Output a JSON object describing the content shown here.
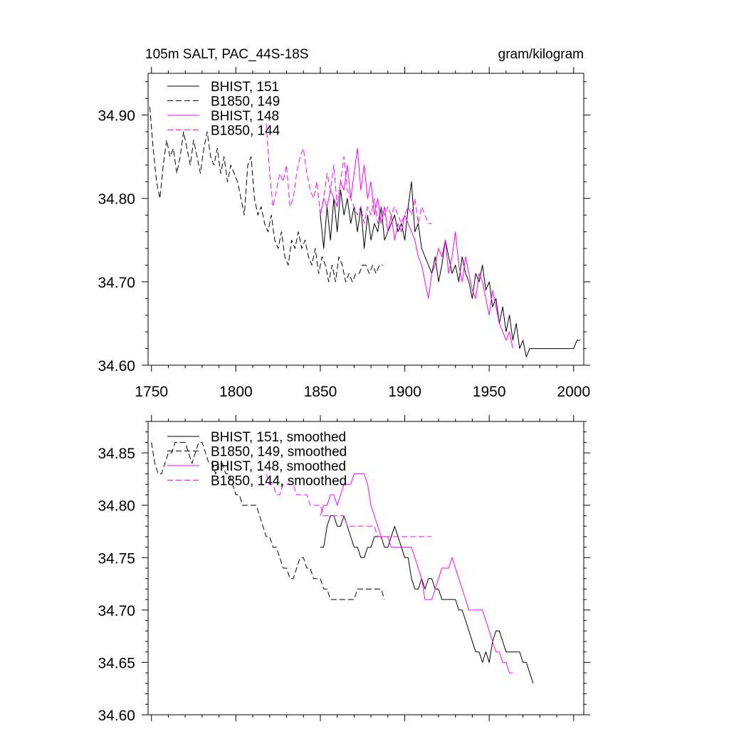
{
  "chart_data": [
    {
      "type": "line",
      "title": "105m SALT, PAC_44S-18S",
      "units": "gram/kilogram",
      "xlim": [
        1748,
        2006
      ],
      "ylim": [
        34.6,
        34.95
      ],
      "x_ticks": [
        1750,
        1800,
        1850,
        1900,
        1950,
        2000
      ],
      "x_tick_labels": [
        "1750",
        "1800",
        "1850",
        "1900",
        "1950",
        "2000"
      ],
      "y_ticks": [
        34.6,
        34.7,
        34.8,
        34.9
      ],
      "y_tick_labels": [
        "34.60",
        "34.70",
        "34.80",
        "34.90"
      ],
      "legend_position": "top-left",
      "series": [
        {
          "name": "BHIST, 151",
          "color": "#000000",
          "dash": "solid",
          "x_start": 1850,
          "x_step": 2,
          "values": [
            34.78,
            34.74,
            34.79,
            34.75,
            34.8,
            34.76,
            34.81,
            34.78,
            34.8,
            34.77,
            34.79,
            34.76,
            34.79,
            34.74,
            34.78,
            34.75,
            34.77,
            34.76,
            34.79,
            34.75,
            34.76,
            34.77,
            34.78,
            34.76,
            34.77,
            34.75,
            34.79,
            34.82,
            34.76,
            34.77,
            34.74,
            34.73,
            34.72,
            34.71,
            34.73,
            34.7,
            34.72,
            34.75,
            34.73,
            34.71,
            34.72,
            34.7,
            34.73,
            34.71,
            34.7,
            34.68,
            34.71,
            34.7,
            34.72,
            34.69,
            34.7,
            34.67,
            34.68,
            34.65,
            34.67,
            34.64,
            34.66,
            34.63,
            34.65,
            34.62,
            34.63,
            34.61,
            34.62,
            34.62,
            34.62,
            34.62,
            34.62,
            34.62,
            34.62,
            34.62,
            34.62,
            34.62,
            34.62,
            34.62,
            34.62,
            34.62,
            34.63,
            34.63
          ]
        },
        {
          "name": "B1850, 149",
          "color": "#000000",
          "dash": "8,4",
          "x_start": 1749,
          "x_step": 2,
          "values": [
            34.91,
            34.86,
            34.82,
            34.8,
            34.84,
            34.87,
            34.85,
            34.86,
            34.83,
            34.85,
            34.88,
            34.86,
            34.84,
            34.87,
            34.85,
            34.83,
            34.86,
            34.88,
            34.85,
            34.84,
            34.86,
            34.83,
            34.85,
            34.82,
            34.84,
            34.83,
            34.82,
            34.8,
            34.78,
            34.84,
            34.85,
            34.8,
            34.78,
            34.79,
            34.77,
            34.76,
            34.78,
            34.75,
            34.74,
            34.76,
            34.73,
            34.72,
            34.75,
            34.74,
            34.76,
            34.74,
            34.75,
            34.73,
            34.72,
            34.74,
            34.71,
            34.73,
            34.72,
            34.7,
            34.72,
            34.7,
            34.73,
            34.72,
            34.7,
            34.71,
            34.7,
            34.71,
            34.71,
            34.72,
            34.72,
            34.71,
            34.72,
            34.71,
            34.72,
            34.72
          ]
        },
        {
          "name": "BHIST, 148",
          "color": "#ff00ff",
          "dash": "solid",
          "x_start": 1850,
          "x_step": 2,
          "values": [
            34.78,
            34.8,
            34.79,
            34.81,
            34.8,
            34.79,
            34.82,
            34.81,
            34.84,
            34.8,
            34.83,
            34.86,
            34.81,
            34.84,
            34.8,
            34.82,
            34.78,
            34.8,
            34.77,
            34.79,
            34.76,
            34.78,
            34.75,
            34.77,
            34.76,
            34.78,
            34.77,
            34.76,
            34.75,
            34.73,
            34.72,
            34.7,
            34.68,
            34.71,
            34.72,
            34.74,
            34.73,
            34.75,
            34.71,
            34.73,
            34.76,
            34.72,
            34.7,
            34.73,
            34.71,
            34.69,
            34.68,
            34.71,
            34.7,
            34.68,
            34.66,
            34.69,
            34.67,
            34.65,
            34.64,
            34.63,
            34.64,
            34.62
          ]
        },
        {
          "name": "B1850, 144",
          "color": "#ff00ff",
          "dash": "8,4",
          "x_start": 1818,
          "x_step": 2,
          "values": [
            34.89,
            34.83,
            34.79,
            34.81,
            34.83,
            34.82,
            34.84,
            34.79,
            34.8,
            34.83,
            34.85,
            34.86,
            34.83,
            34.81,
            34.8,
            34.82,
            34.78,
            34.8,
            34.83,
            34.81,
            34.84,
            34.79,
            34.82,
            34.85,
            34.81,
            34.8,
            34.79,
            34.78,
            34.79,
            34.77,
            34.79,
            34.78,
            34.8,
            34.77,
            34.79,
            34.78,
            34.79,
            34.78,
            34.79,
            34.78,
            34.77,
            34.78,
            34.79,
            34.78,
            34.8,
            34.77,
            34.79,
            34.78,
            34.77,
            34.77
          ]
        }
      ]
    },
    {
      "type": "line",
      "title": "",
      "xlim": [
        1748,
        2006
      ],
      "ylim": [
        34.6,
        34.88
      ],
      "y_ticks": [
        34.6,
        34.65,
        34.7,
        34.75,
        34.8,
        34.85
      ],
      "y_tick_labels": [
        "34.60",
        "34.65",
        "34.70",
        "34.75",
        "34.80",
        "34.85"
      ],
      "legend_position": "top-left",
      "series": [
        {
          "name": "BHIST, 151, smoothed",
          "color": "#000000",
          "dash": "solid",
          "x_start": 1850,
          "x_step": 2,
          "values": [
            34.76,
            34.76,
            34.78,
            34.79,
            34.79,
            34.78,
            34.78,
            34.79,
            34.78,
            34.77,
            34.76,
            34.76,
            34.75,
            34.75,
            34.76,
            34.76,
            34.77,
            34.77,
            34.77,
            34.76,
            34.76,
            34.77,
            34.78,
            34.77,
            34.76,
            34.75,
            34.75,
            34.73,
            34.72,
            34.72,
            34.73,
            34.72,
            34.73,
            34.73,
            34.72,
            34.72,
            34.71,
            34.71,
            34.71,
            34.71,
            34.71,
            34.7,
            34.7,
            34.69,
            34.68,
            34.67,
            34.66,
            34.66,
            34.65,
            34.66,
            34.65,
            34.67,
            34.68,
            34.68,
            34.67,
            34.66,
            34.66,
            34.66,
            34.66,
            34.66,
            34.65,
            34.65,
            34.64,
            34.63
          ]
        },
        {
          "name": "B1850, 149, smoothed",
          "color": "#000000",
          "dash": "8,4",
          "x_start": 1750,
          "x_step": 2,
          "values": [
            34.86,
            34.84,
            34.83,
            34.83,
            34.84,
            34.85,
            34.85,
            34.86,
            34.86,
            34.86,
            34.86,
            34.85,
            34.84,
            34.85,
            34.86,
            34.86,
            34.85,
            34.84,
            34.84,
            34.83,
            34.84,
            34.84,
            34.83,
            34.83,
            34.82,
            34.81,
            34.81,
            34.8,
            34.8,
            34.8,
            34.8,
            34.8,
            34.79,
            34.78,
            34.77,
            34.77,
            34.76,
            34.76,
            34.75,
            34.74,
            34.74,
            34.73,
            34.73,
            34.74,
            34.75,
            34.75,
            34.74,
            34.74,
            34.73,
            34.73,
            34.73,
            34.72,
            34.72,
            34.71,
            34.71,
            34.71,
            34.71,
            34.71,
            34.71,
            34.71,
            34.71,
            34.72,
            34.72,
            34.72,
            34.72,
            34.72,
            34.72,
            34.72,
            34.72,
            34.71
          ]
        },
        {
          "name": "BHIST, 148, smoothed",
          "color": "#ff00ff",
          "dash": "solid",
          "x_start": 1850,
          "x_step": 2,
          "values": [
            34.79,
            34.8,
            34.8,
            34.81,
            34.81,
            34.8,
            34.81,
            34.82,
            34.82,
            34.82,
            34.83,
            34.83,
            34.83,
            34.83,
            34.82,
            34.8,
            34.79,
            34.78,
            34.77,
            34.77,
            34.77,
            34.76,
            34.76,
            34.76,
            34.76,
            34.76,
            34.76,
            34.76,
            34.75,
            34.74,
            34.73,
            34.71,
            34.71,
            34.71,
            34.72,
            34.73,
            34.74,
            34.74,
            34.74,
            34.75,
            34.74,
            34.73,
            34.72,
            34.71,
            34.7,
            34.7,
            34.7,
            34.7,
            34.7,
            34.69,
            34.68,
            34.67,
            34.66,
            34.66,
            34.65,
            34.65,
            34.64,
            34.64
          ]
        },
        {
          "name": "B1850, 144, smoothed",
          "color": "#ff00ff",
          "dash": "8,4",
          "x_start": 1818,
          "x_step": 2,
          "values": [
            34.83,
            34.82,
            34.82,
            34.81,
            34.81,
            34.82,
            34.82,
            34.82,
            34.82,
            34.81,
            34.81,
            34.81,
            34.81,
            34.8,
            34.8,
            34.8,
            34.8,
            34.79,
            34.79,
            34.79,
            34.79,
            34.79,
            34.79,
            34.79,
            34.78,
            34.78,
            34.78,
            34.78,
            34.78,
            34.78,
            34.78,
            34.78,
            34.78,
            34.77,
            34.77,
            34.77,
            34.77,
            34.77,
            34.77,
            34.77,
            34.77,
            34.77,
            34.77,
            34.77,
            34.77,
            34.77,
            34.77,
            34.77,
            34.77,
            34.77
          ]
        }
      ]
    }
  ]
}
